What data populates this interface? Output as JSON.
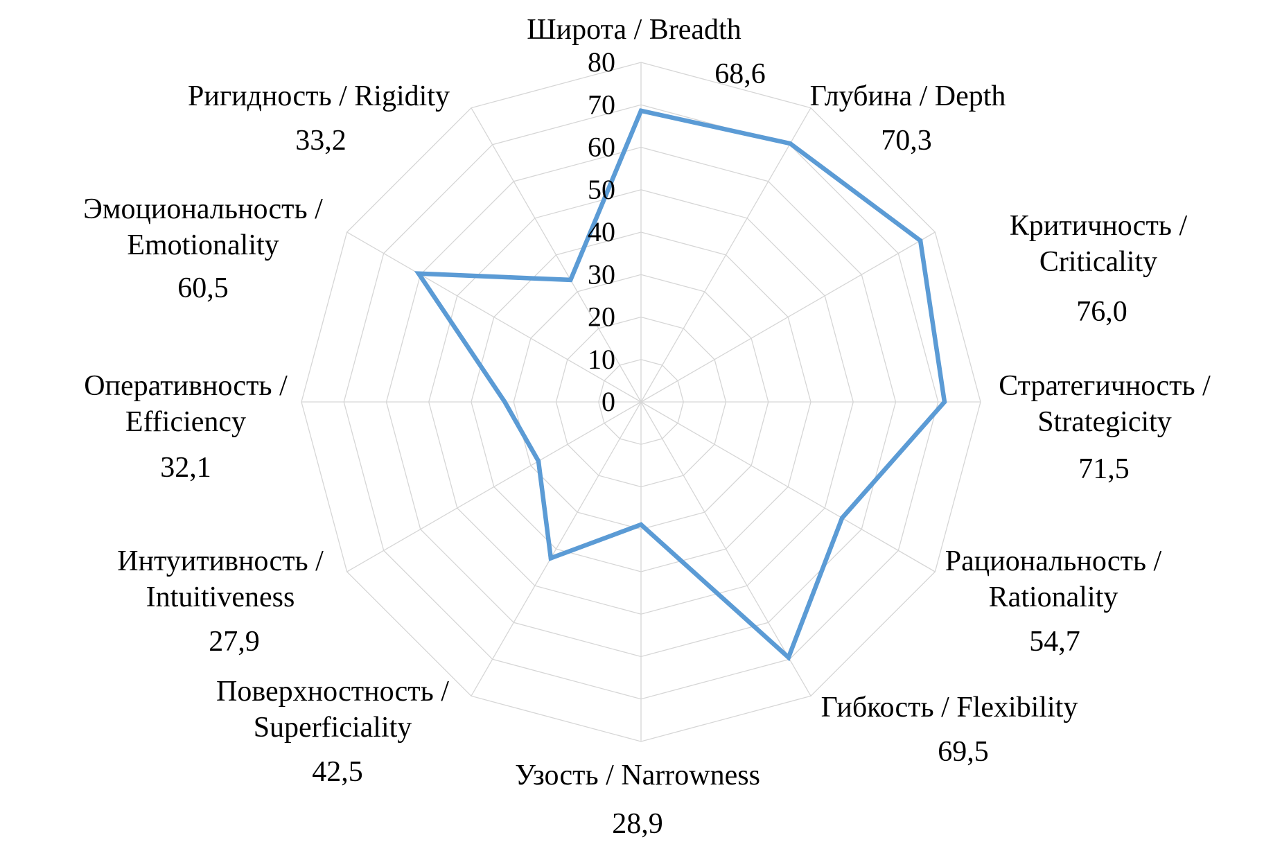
{
  "chart_data": {
    "type": "radar",
    "title": "",
    "r_ticks": [
      "0",
      "10",
      "20",
      "30",
      "40",
      "50",
      "60",
      "70",
      "80"
    ],
    "r_range": [
      0,
      80
    ],
    "grid": true,
    "legend": "none",
    "series_color": "#5b9bd5",
    "categories": [
      {
        "label": [
          "Широта / Breadth"
        ],
        "value_label": "68,6"
      },
      {
        "label": [
          "Глубина / Depth"
        ],
        "value_label": "70,3"
      },
      {
        "label": [
          "Критичность /",
          "Criticality"
        ],
        "value_label": "76,0"
      },
      {
        "label": [
          "Стратегичность /",
          "Strategicity"
        ],
        "value_label": "71,5"
      },
      {
        "label": [
          "Рациональность /",
          "Rationality"
        ],
        "value_label": "54,7"
      },
      {
        "label": [
          "Гибкость / Flexibility"
        ],
        "value_label": "69,5"
      },
      {
        "label": [
          "Узость / Narrowness"
        ],
        "value_label": "28,9"
      },
      {
        "label": [
          "Поверхностность /",
          "Superficiality"
        ],
        "value_label": "42,5"
      },
      {
        "label": [
          "Интуитивность /",
          "Intuitiveness"
        ],
        "value_label": "27,9"
      },
      {
        "label": [
          "Оперативность /",
          "Efficiency"
        ],
        "value_label": "32,1"
      },
      {
        "label": [
          "Эмоциональность /",
          "Emotionality"
        ],
        "value_label": "60,5"
      },
      {
        "label": [
          "Ригидность / Rigidity"
        ],
        "value_label": "33,2"
      }
    ],
    "series": [
      {
        "values": [
          68.6,
          70.3,
          76.0,
          71.5,
          54.7,
          69.5,
          28.9,
          42.5,
          27.9,
          32.1,
          60.5,
          33.2
        ]
      }
    ]
  }
}
